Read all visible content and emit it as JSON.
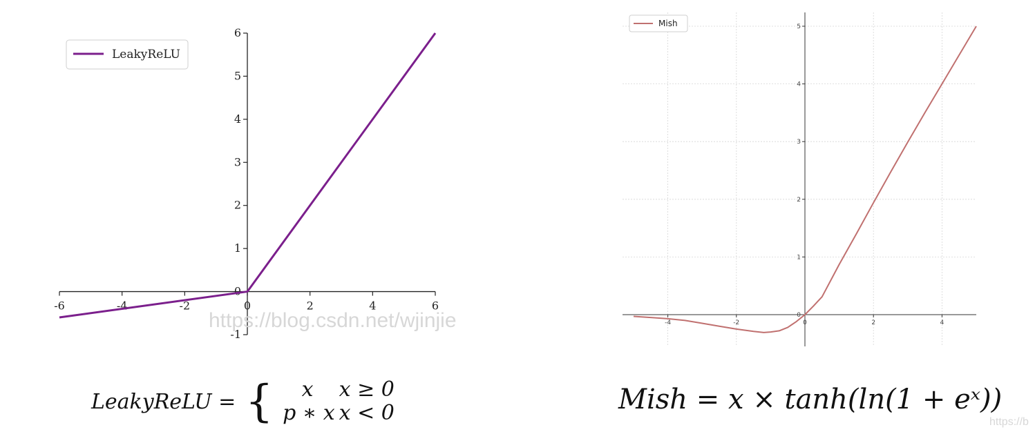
{
  "chart_data": [
    {
      "type": "line",
      "title": "",
      "xlabel": "",
      "ylabel": "",
      "xlim": [
        -6,
        6
      ],
      "ylim": [
        -1,
        6
      ],
      "x_ticks": [
        "-6",
        "-4",
        "-2",
        "0",
        "2",
        "4",
        "6"
      ],
      "y_ticks": [
        "-1",
        "0",
        "1",
        "2",
        "3",
        "4",
        "5",
        "6"
      ],
      "grid": false,
      "legend_position": "top-left",
      "series": [
        {
          "name": "LeakyReLU",
          "color": "#7b1f8c",
          "x": [
            -6,
            0,
            6
          ],
          "y": [
            -0.6,
            0,
            6
          ]
        }
      ]
    },
    {
      "type": "line",
      "title": "",
      "xlabel": "",
      "ylabel": "",
      "xlim": [
        -5.5,
        5
      ],
      "ylim": [
        -0.5,
        5.2
      ],
      "x_ticks": [
        "-4",
        "-2",
        "0",
        "2",
        "4"
      ],
      "y_ticks": [
        "0",
        "1",
        "2",
        "3",
        "4",
        "5"
      ],
      "grid": true,
      "legend_position": "top-left",
      "series": [
        {
          "name": "Mish",
          "color": "#c0706f",
          "x": [
            -5,
            -4.5,
            -4,
            -3.5,
            -3,
            -2.5,
            -2,
            -1.5,
            -1.2,
            -1,
            -0.75,
            -0.5,
            -0.25,
            0,
            0.25,
            0.5,
            1,
            1.5,
            2,
            2.5,
            3,
            3.5,
            4,
            4.5,
            5
          ],
          "y": [
            -0.03,
            -0.05,
            -0.07,
            -0.1,
            -0.15,
            -0.2,
            -0.25,
            -0.29,
            -0.31,
            -0.3,
            -0.28,
            -0.22,
            -0.12,
            0,
            0.15,
            0.31,
            0.87,
            1.4,
            1.94,
            2.47,
            2.99,
            3.5,
            4,
            4.5,
            5
          ]
        }
      ]
    }
  ],
  "formulas": {
    "left_lhs": "LeakyReLU =",
    "left_brace": "{",
    "left_case1_expr": "x",
    "left_case1_cond": "x ≥ 0",
    "left_case2_expr": "p ∗ x",
    "left_case2_cond": "x < 0",
    "right": "Mish = x × tanh(ln(1 + eˣ))"
  },
  "watermarks": {
    "left": "https://blog.csdn.net/wjinjie",
    "right": "https://b"
  }
}
